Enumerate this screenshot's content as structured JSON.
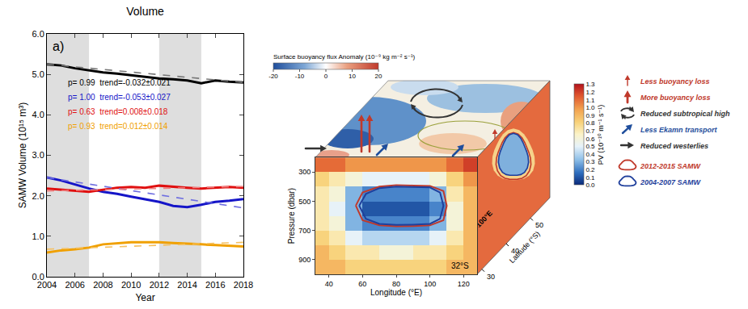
{
  "chart_data": [
    {
      "type": "line",
      "title": "Volume",
      "x_label": "Year",
      "y_label": "SAMW Volume (10¹⁵ m³)",
      "x": [
        2004,
        2005,
        2006,
        2007,
        2008,
        2009,
        2010,
        2011,
        2012,
        2013,
        2014,
        2015,
        2016,
        2017,
        2018
      ],
      "series": [
        {
          "color": "#000000",
          "values": [
            5.25,
            5.22,
            5.15,
            5.1,
            5.05,
            5.02,
            4.98,
            4.95,
            4.9,
            4.88,
            4.85,
            4.78,
            4.85,
            4.82,
            4.8
          ]
        },
        {
          "color": "#1515c8",
          "values": [
            2.45,
            2.38,
            2.28,
            2.18,
            2.1,
            2.05,
            1.98,
            1.92,
            1.85,
            1.75,
            1.72,
            1.78,
            1.85,
            1.88,
            1.92
          ]
        },
        {
          "color": "#e01010",
          "values": [
            2.18,
            2.15,
            2.12,
            2.1,
            2.15,
            2.2,
            2.22,
            2.2,
            2.25,
            2.22,
            2.2,
            2.18,
            2.2,
            2.22,
            2.2
          ]
        },
        {
          "color": "#f0a000",
          "values": [
            0.6,
            0.65,
            0.68,
            0.72,
            0.8,
            0.82,
            0.85,
            0.85,
            0.85,
            0.83,
            0.82,
            0.8,
            0.78,
            0.76,
            0.75
          ]
        },
        {
          "color": "#777777",
          "line_style": "dashed",
          "x": [
            2004,
            2018
          ],
          "values": [
            5.25,
            4.8
          ]
        },
        {
          "color": "#6f6fe0",
          "line_style": "dashed",
          "x": [
            2004,
            2018
          ],
          "values": [
            2.45,
            1.7
          ]
        },
        {
          "color": "#f08080",
          "line_style": "dashed",
          "x": [
            2004,
            2018
          ],
          "values": [
            2.12,
            2.23
          ]
        },
        {
          "color": "#f5c060",
          "line_style": "dashed",
          "x": [
            2004,
            2018
          ],
          "values": [
            0.68,
            0.85
          ]
        }
      ],
      "shaded": [
        [
          2004,
          2007
        ],
        [
          2012,
          2015
        ]
      ],
      "annotations": [
        {
          "text": "a)",
          "color": "#000000"
        },
        {
          "text": "p= 0.99  trend=-0.032±0.021",
          "color": "#000000"
        },
        {
          "text": "p= 1.00  trend=-0.053±0.027",
          "color": "#1515c8"
        },
        {
          "text": "p= 0.63  trend=0.008±0.018",
          "color": "#e01010"
        },
        {
          "text": "p= 0.93  trend=0.012±0.014",
          "color": "#f0a000"
        }
      ],
      "xlim": [
        2004,
        2018
      ],
      "xticks": [
        2004,
        2006,
        2008,
        2010,
        2012,
        2014,
        2016,
        2018
      ],
      "ylim": [
        0,
        6
      ],
      "yticks": [
        {
          "value": 0,
          "label": "0.0"
        },
        {
          "value": 1,
          "label": "1.0"
        },
        {
          "value": 2,
          "label": "2.0"
        },
        {
          "value": 3,
          "label": "3.0"
        },
        {
          "value": 4,
          "label": "4.0"
        },
        {
          "value": 5,
          "label": "5.0"
        },
        {
          "value": 6,
          "label": "6.0"
        }
      ],
      "grid": false
    },
    {
      "type": "heatmap",
      "x_label": "Longitude (°E)",
      "y_label": "Pressure (dbar)",
      "x": [
        35,
        45,
        55,
        65,
        75,
        85,
        95,
        105,
        115,
        125
      ],
      "y": [
        250,
        350,
        450,
        550,
        650,
        750,
        850,
        950
      ],
      "cells": [
        [
          1.1,
          1.1,
          1.0,
          1.0,
          1.0,
          1.0,
          1.0,
          1.0,
          1.1,
          1.2
        ],
        [
          0.8,
          0.7,
          0.6,
          0.5,
          0.5,
          0.5,
          0.5,
          0.6,
          0.8,
          1.0
        ],
        [
          0.7,
          0.6,
          0.3,
          0.2,
          0.2,
          0.2,
          0.2,
          0.3,
          0.7,
          0.9
        ],
        [
          0.7,
          0.5,
          0.3,
          0.1,
          0.1,
          0.1,
          0.1,
          0.2,
          0.6,
          0.9
        ],
        [
          0.7,
          0.6,
          0.3,
          0.2,
          0.2,
          0.2,
          0.2,
          0.3,
          0.6,
          0.9
        ],
        [
          0.8,
          0.7,
          0.5,
          0.4,
          0.4,
          0.4,
          0.4,
          0.5,
          0.7,
          0.9
        ],
        [
          0.9,
          0.8,
          0.7,
          0.7,
          0.6,
          0.6,
          0.7,
          0.7,
          0.8,
          0.9
        ],
        [
          0.9,
          0.9,
          0.8,
          0.8,
          0.8,
          0.8,
          0.8,
          0.8,
          0.9,
          0.9
        ]
      ],
      "colorbar": {
        "title": "PV (10⁻¹⁰ m⁻¹ s⁻¹)",
        "range": [
          0,
          1.3
        ],
        "ticks": [
          {
            "value": 0,
            "label": "0.0"
          },
          0.1,
          0.2,
          0.3,
          0.4,
          0.5,
          0.6,
          0.7,
          0.8,
          0.9,
          {
            "value": 1,
            "label": "1.0"
          },
          1.1,
          1.2,
          1.3
        ]
      },
      "series": [
        {
          "type": "line",
          "color": "#c0392b",
          "x": [
            56,
            60,
            70,
            80,
            90,
            100,
            108,
            110,
            108,
            100,
            90,
            80,
            70,
            60,
            56
          ],
          "values": [
            530,
            440,
            400,
            390,
            392,
            395,
            430,
            530,
            630,
            665,
            670,
            672,
            665,
            630,
            530
          ]
        },
        {
          "type": "line",
          "color": "#1f3f9c",
          "x": [
            58,
            62,
            70,
            80,
            90,
            100,
            106,
            108,
            106,
            100,
            90,
            80,
            70,
            62,
            58
          ],
          "values": [
            530,
            450,
            410,
            400,
            402,
            405,
            440,
            530,
            620,
            655,
            660,
            662,
            655,
            620,
            530
          ]
        }
      ],
      "annotations": [
        {
          "text": "32°S",
          "x": 118,
          "y": 940
        }
      ],
      "xlim": [
        32,
        128
      ],
      "xticks": [
        40,
        60,
        80,
        100,
        120
      ],
      "ylim": [
        1000,
        200
      ],
      "yticks": [
        300,
        500,
        700,
        900
      ],
      "grid": false
    }
  ],
  "diagram": {
    "buoyancy_colorbar": {
      "title": "Surface buoyancy flux Anomaly (10⁻⁹ kg m⁻² s⁻¹)",
      "range": [
        -20,
        20
      ],
      "ticks": [
        -20,
        -10,
        0,
        10,
        20
      ]
    },
    "side_panel": {
      "label": "100°E",
      "x_label": "Latitude (°S)",
      "latlim": [
        28,
        58
      ],
      "latticks": [
        50,
        40,
        30
      ]
    },
    "legend": [
      {
        "text": "Less buoyancy loss",
        "color": "#c0392b",
        "marker": "arrow"
      },
      {
        "text": "More buoyancy loss",
        "color": "#c0392b",
        "marker": "thick_arrow"
      },
      {
        "text": "Reduced subtropical high",
        "color": "#333333",
        "marker": "circular_arrows"
      },
      {
        "text": "Less Ekamn transport",
        "color": "#1f4e9c",
        "marker": "arrow"
      },
      {
        "text": "Reduced westerlies",
        "color": "#333333",
        "marker": "arrow"
      },
      {
        "text": "2012-2015 SAMW",
        "color": "#c0392b",
        "marker": "outline"
      },
      {
        "text": "2004-2007 SAMW",
        "color": "#1f3f9c",
        "marker": "outline"
      }
    ]
  }
}
